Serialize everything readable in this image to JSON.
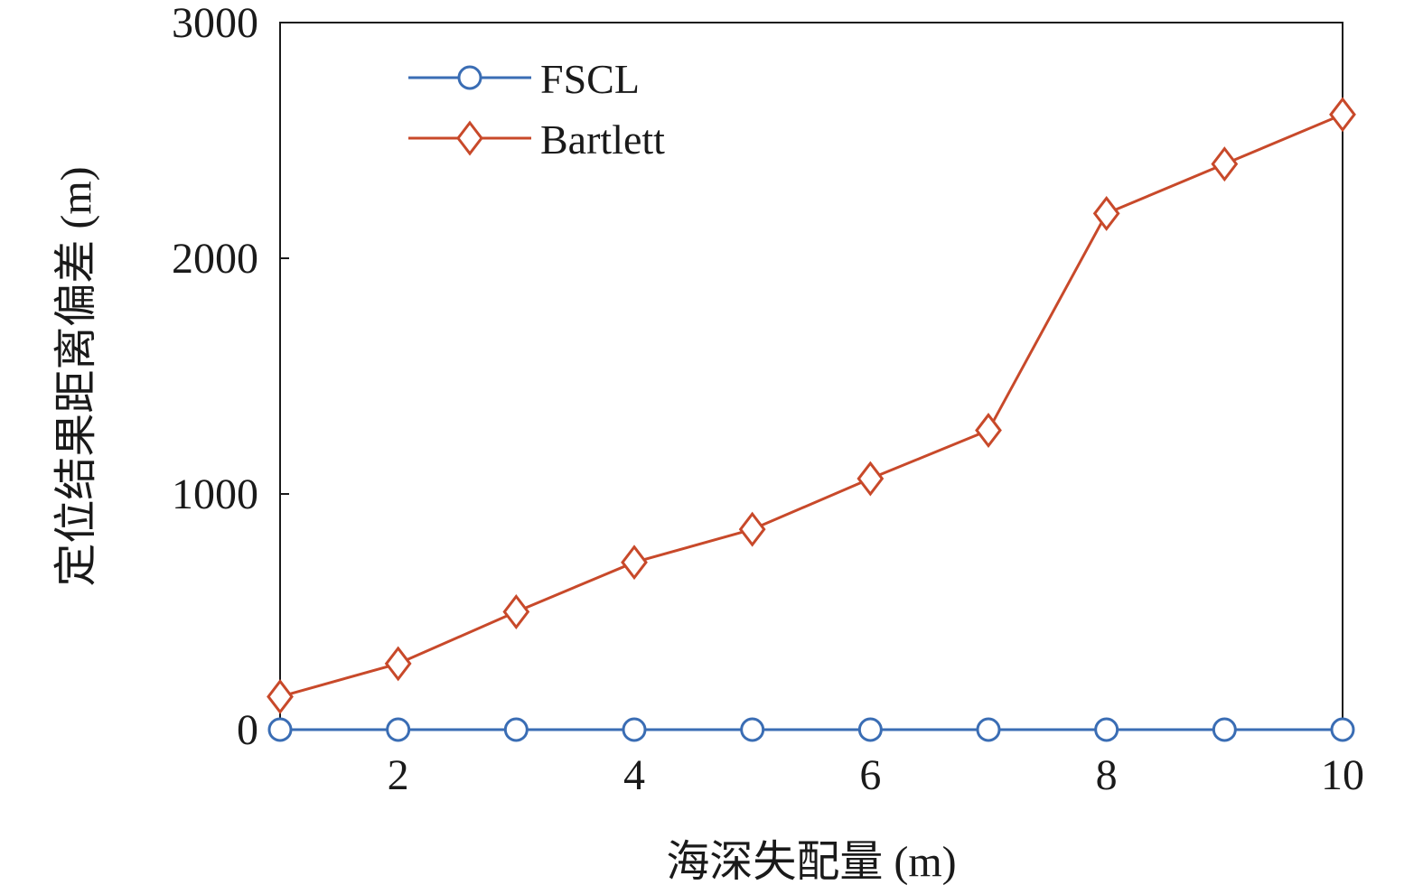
{
  "chart_data": {
    "type": "line",
    "xlabel": "海深失配量 (m)",
    "ylabel": "定位结果距离偏差 (m)",
    "x": [
      1,
      2,
      3,
      4,
      5,
      6,
      7,
      8,
      9,
      10
    ],
    "xlim": [
      1,
      10
    ],
    "ylim": [
      0,
      3000
    ],
    "xticks": [
      2,
      4,
      6,
      8,
      10
    ],
    "yticks": [
      0,
      1000,
      2000,
      3000
    ],
    "grid": false,
    "legend_position": "top-left",
    "series": [
      {
        "name": "FSCL",
        "marker": "circle",
        "color": "#3a6db4",
        "values": [
          0,
          0,
          0,
          0,
          0,
          0,
          0,
          0,
          0,
          0
        ]
      },
      {
        "name": "Bartlett",
        "marker": "diamond",
        "color": "#c8492a",
        "values": [
          140,
          280,
          500,
          710,
          850,
          1065,
          1270,
          2190,
          2400,
          2610
        ]
      }
    ]
  }
}
